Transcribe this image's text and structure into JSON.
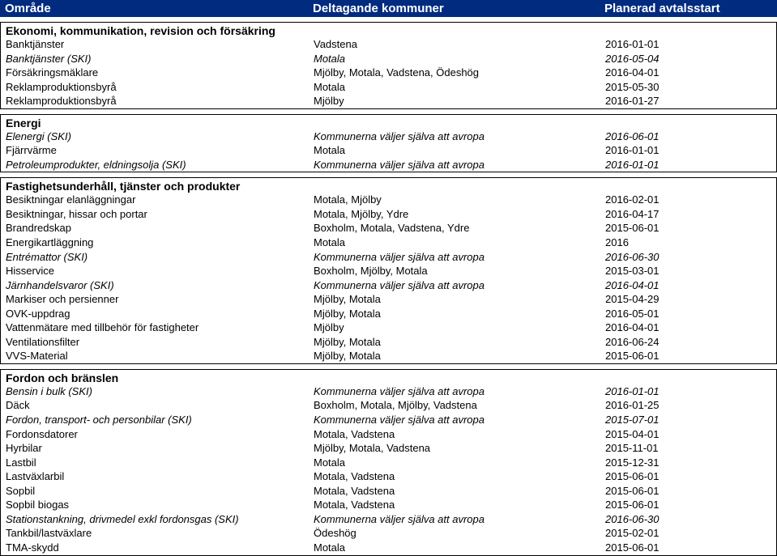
{
  "header": {
    "col1": "Område",
    "col2": "Deltagande kommuner",
    "col3": "Planerad avtalsstart"
  },
  "sections": [
    {
      "title": "Ekonomi, kommunikation, revision och försäkring",
      "rows": [
        {
          "c1": "Banktjänster",
          "c2": "Vadstena",
          "c3": "2016-01-01",
          "italic": false
        },
        {
          "c1": "Banktjänster (SKI)",
          "c2": "Motala",
          "c3": "2016-05-04",
          "italic": true
        },
        {
          "c1": "Försäkringsmäklare",
          "c2": "Mjölby, Motala, Vadstena, Ödeshög",
          "c3": "2016-04-01",
          "italic": false
        },
        {
          "c1": "Reklamproduktionsbyrå",
          "c2": "Motala",
          "c3": "2015-05-30",
          "italic": false
        },
        {
          "c1": "Reklamproduktionsbyrå",
          "c2": "Mjölby",
          "c3": "2016-01-27",
          "italic": false
        }
      ]
    },
    {
      "title": "Energi",
      "rows": [
        {
          "c1": "Elenergi (SKI)",
          "c2": "Kommunerna väljer själva att avropa",
          "c3": "2016-06-01",
          "italic": true
        },
        {
          "c1": "Fjärrvärme",
          "c2": "Motala",
          "c3": "2016-01-01",
          "italic": false
        },
        {
          "c1": "Petroleumprodukter, eldningsolja (SKI)",
          "c2": "Kommunerna väljer själva att avropa",
          "c3": "2016-01-01",
          "italic": true
        }
      ]
    },
    {
      "title": "Fastighetsunderhåll, tjänster och produkter",
      "rows": [
        {
          "c1": "Besiktningar elanläggningar",
          "c2": "Motala, Mjölby",
          "c3": "2016-02-01",
          "italic": false
        },
        {
          "c1": "Besiktningar, hissar och portar",
          "c2": "Motala, Mjölby, Ydre",
          "c3": "2016-04-17",
          "italic": false
        },
        {
          "c1": "Brandredskap",
          "c2": "Boxholm, Motala, Vadstena, Ydre",
          "c3": "2015-06-01",
          "italic": false
        },
        {
          "c1": "Energikartläggning",
          "c2": "Motala",
          "c3": "2016",
          "italic": false
        },
        {
          "c1": "Entrémattor (SKI)",
          "c2": "Kommunerna väljer själva att avropa",
          "c3": "2016-06-30",
          "italic": true
        },
        {
          "c1": "Hisservice",
          "c2": "Boxholm, Mjölby, Motala",
          "c3": "2015-03-01",
          "italic": false
        },
        {
          "c1": "Järnhandelsvaror (SKI)",
          "c2": "Kommunerna väljer själva att avropa",
          "c3": "2016-04-01",
          "italic": true
        },
        {
          "c1": "Markiser och persienner",
          "c2": "Mjölby, Motala",
          "c3": "2015-04-29",
          "italic": false
        },
        {
          "c1": "OVK-uppdrag",
          "c2": "Mjölby, Motala",
          "c3": "2016-05-01",
          "italic": false
        },
        {
          "c1": "Vattenmätare med tillbehör för fastigheter",
          "c2": "Mjölby",
          "c3": "2016-04-01",
          "italic": false
        },
        {
          "c1": "Ventilationsfilter",
          "c2": "Mjölby, Motala",
          "c3": "2016-06-24",
          "italic": false
        },
        {
          "c1": "VVS-Material",
          "c2": "Mjölby, Motala",
          "c3": "2015-06-01",
          "italic": false
        }
      ]
    },
    {
      "title": "Fordon och bränslen",
      "rows": [
        {
          "c1": "Bensin i bulk (SKI)",
          "c2": "Kommunerna väljer själva att avropa",
          "c3": "2016-01-01",
          "italic": true
        },
        {
          "c1": "Däck",
          "c2": "Boxholm, Motala, Mjölby, Vadstena",
          "c3": "2016-01-25",
          "italic": false
        },
        {
          "c1": "Fordon, transport- och personbilar (SKI)",
          "c2": "Kommunerna väljer själva att avropa",
          "c3": "2015-07-01",
          "italic": true
        },
        {
          "c1": "Fordonsdatorer",
          "c2": "Motala, Vadstena",
          "c3": "2015-04-01",
          "italic": false
        },
        {
          "c1": "Hyrbilar",
          "c2": "Mjölby, Motala, Vadstena",
          "c3": "2015-11-01",
          "italic": false
        },
        {
          "c1": "Lastbil",
          "c2": "Motala",
          "c3": "2015-12-31",
          "italic": false
        },
        {
          "c1": "Lastväxlarbil",
          "c2": "Motala, Vadstena",
          "c3": "2015-06-01",
          "italic": false
        },
        {
          "c1": "Sopbil",
          "c2": "Motala, Vadstena",
          "c3": "2015-06-01",
          "italic": false
        },
        {
          "c1": "Sopbil biogas",
          "c2": "Motala, Vadstena",
          "c3": "2015-06-01",
          "italic": false
        },
        {
          "c1": "Stationstankning, drivmedel exkl fordonsgas (SKI)",
          "c2": "Kommunerna väljer själva att avropa",
          "c3": "2016-06-30",
          "italic": true
        },
        {
          "c1": "Tankbil/lastväxlare",
          "c2": "Ödeshög",
          "c3": "2015-02-01",
          "italic": false
        },
        {
          "c1": "TMA-skydd",
          "c2": "Motala",
          "c3": "2015-06-01",
          "italic": false
        }
      ]
    }
  ],
  "colors": {
    "headerBg": "#002b7f",
    "headerText": "#ffffff",
    "border": "#000000",
    "text": "#000000",
    "bg": "#ffffff"
  }
}
